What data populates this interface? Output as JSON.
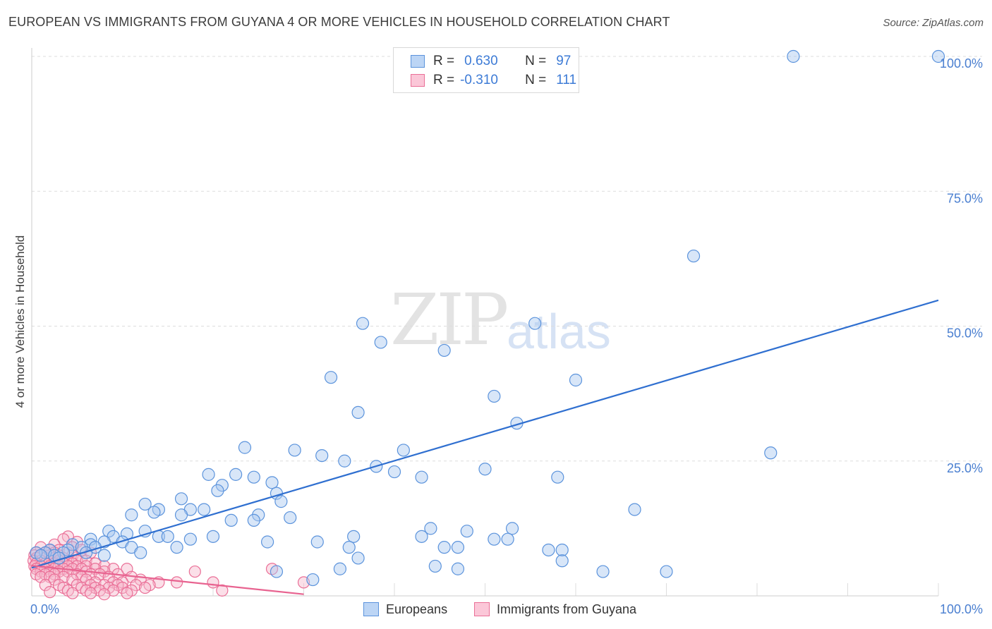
{
  "title": "EUROPEAN VS IMMIGRANTS FROM GUYANA 4 OR MORE VEHICLES IN HOUSEHOLD CORRELATION CHART",
  "source": "Source: ZipAtlas.com",
  "watermark": {
    "zip": "ZIP",
    "atlas": "atlas"
  },
  "legend": {
    "rows": [
      {
        "r_label": "R =",
        "r_value": "0.630",
        "n_label": "N =",
        "n_value": "97"
      },
      {
        "r_label": "R =",
        "r_value": "-0.310",
        "n_label": "N =",
        "n_value": "111"
      }
    ]
  },
  "bottom_legend": {
    "series1": "Europeans",
    "series2": "Immigrants from Guyana"
  },
  "colors": {
    "blue_fill": "#a8c8f0",
    "blue_stroke": "#5b93dc",
    "blue_line": "#2f6fd0",
    "pink_fill": "#f7b8cc",
    "pink_stroke": "#ea6f97",
    "pink_line": "#e86390",
    "tick": "#4a7fd0",
    "grid": "#dddddd"
  },
  "chart_data": {
    "type": "scatter",
    "title": "EUROPEAN VS IMMIGRANTS FROM GUYANA 4 OR MORE VEHICLES IN HOUSEHOLD CORRELATION CHART",
    "xlabel": "",
    "ylabel": "4 or more Vehicles in Household",
    "xlim": [
      0,
      100
    ],
    "ylim": [
      0,
      100
    ],
    "x_tick_labels": [
      {
        "value": 0,
        "label": "0.0%"
      },
      {
        "value": 100,
        "label": "100.0%"
      }
    ],
    "y_tick_labels": [
      {
        "value": 25,
        "label": "25.0%"
      },
      {
        "value": 50,
        "label": "50.0%"
      },
      {
        "value": 75,
        "label": "75.0%"
      },
      {
        "value": 100,
        "label": "100.0%"
      }
    ],
    "grid": "horizontal dashed",
    "legend_position": "top-center",
    "series": [
      {
        "name": "Europeans",
        "color": "#5b93dc",
        "trend": {
          "x": [
            0,
            100
          ],
          "y": [
            5.2,
            54.8
          ]
        },
        "points": [
          [
            84,
            100
          ],
          [
            100,
            100
          ],
          [
            73,
            63
          ],
          [
            36.5,
            50.5
          ],
          [
            55.5,
            50.5
          ],
          [
            38.5,
            47
          ],
          [
            45.5,
            45.5
          ],
          [
            33,
            40.5
          ],
          [
            60,
            40
          ],
          [
            51,
            37
          ],
          [
            36,
            34
          ],
          [
            53.5,
            32
          ],
          [
            23.5,
            27.5
          ],
          [
            29,
            27
          ],
          [
            41,
            27
          ],
          [
            32,
            26
          ],
          [
            34.5,
            25
          ],
          [
            38,
            24
          ],
          [
            50,
            23.5
          ],
          [
            40,
            23
          ],
          [
            22.5,
            22.5
          ],
          [
            19.5,
            22.5
          ],
          [
            24.5,
            22
          ],
          [
            43,
            22
          ],
          [
            58,
            22
          ],
          [
            26.5,
            21
          ],
          [
            21,
            20.5
          ],
          [
            20.5,
            19.5
          ],
          [
            27,
            19
          ],
          [
            81.5,
            26.5
          ],
          [
            16.5,
            18
          ],
          [
            12.5,
            17
          ],
          [
            27.5,
            17.5
          ],
          [
            17.5,
            16
          ],
          [
            14,
            16
          ],
          [
            19,
            16
          ],
          [
            13.5,
            15.5
          ],
          [
            25,
            15
          ],
          [
            16.5,
            15
          ],
          [
            11,
            15
          ],
          [
            28.5,
            14.5
          ],
          [
            22,
            14
          ],
          [
            24.5,
            14
          ],
          [
            66.5,
            16
          ],
          [
            44,
            12.5
          ],
          [
            12.5,
            12
          ],
          [
            8.5,
            12
          ],
          [
            10.5,
            11.5
          ],
          [
            20,
            11
          ],
          [
            9,
            11
          ],
          [
            14,
            11
          ],
          [
            15,
            11
          ],
          [
            6.5,
            10.5
          ],
          [
            8,
            10
          ],
          [
            6.5,
            9.5
          ],
          [
            10,
            10
          ],
          [
            17.5,
            10.5
          ],
          [
            26,
            10
          ],
          [
            48,
            12
          ],
          [
            53,
            12.5
          ],
          [
            35.5,
            11
          ],
          [
            52.5,
            10.5
          ],
          [
            43,
            11
          ],
          [
            51,
            10.5
          ],
          [
            31.5,
            10
          ],
          [
            4.5,
            9.5
          ],
          [
            5.5,
            9
          ],
          [
            7,
            9
          ],
          [
            11,
            9
          ],
          [
            16,
            9
          ],
          [
            4,
            8.5
          ],
          [
            2,
            8.5
          ],
          [
            3.5,
            8
          ],
          [
            1.5,
            8
          ],
          [
            0.5,
            8
          ],
          [
            1,
            7.5
          ],
          [
            2.5,
            7.5
          ],
          [
            3,
            7
          ],
          [
            6,
            8
          ],
          [
            8,
            7.5
          ],
          [
            12,
            8
          ],
          [
            35,
            9
          ],
          [
            45.5,
            9
          ],
          [
            47,
            9
          ],
          [
            57,
            8.5
          ],
          [
            58.5,
            8.5
          ],
          [
            36,
            7
          ],
          [
            58.5,
            6.5
          ],
          [
            44.5,
            5.5
          ],
          [
            34,
            5
          ],
          [
            47,
            5
          ],
          [
            63,
            4.5
          ],
          [
            70,
            4.5
          ],
          [
            27,
            4.5
          ],
          [
            31,
            3
          ]
        ]
      },
      {
        "name": "Immigrants from Guyana",
        "color": "#ea6f97",
        "trend": {
          "x": [
            0,
            30
          ],
          "y": [
            5.6,
            0.3
          ]
        },
        "points": [
          [
            4,
            11
          ],
          [
            3.5,
            10.5
          ],
          [
            5,
            10
          ],
          [
            2.5,
            9.5
          ],
          [
            4.5,
            9
          ],
          [
            1,
            9
          ],
          [
            2,
            8.5
          ],
          [
            3,
            8.5
          ],
          [
            5.5,
            8.5
          ],
          [
            0.5,
            8
          ],
          [
            1.5,
            8
          ],
          [
            2.5,
            8
          ],
          [
            4,
            8
          ],
          [
            6.5,
            8
          ],
          [
            0.3,
            7.5
          ],
          [
            1,
            7.5
          ],
          [
            2,
            7.5
          ],
          [
            3,
            7.5
          ],
          [
            4.5,
            7.5
          ],
          [
            5.5,
            7
          ],
          [
            0.5,
            7
          ],
          [
            1.5,
            7
          ],
          [
            2.5,
            7
          ],
          [
            3.5,
            7
          ],
          [
            0.2,
            6.5
          ],
          [
            1,
            6.5
          ],
          [
            2,
            6.5
          ],
          [
            3,
            6.5
          ],
          [
            4,
            6.5
          ],
          [
            5,
            6.5
          ],
          [
            6,
            6.5
          ],
          [
            0.5,
            6
          ],
          [
            1.5,
            6
          ],
          [
            2.5,
            6
          ],
          [
            3.5,
            6
          ],
          [
            4.5,
            6
          ],
          [
            7,
            6
          ],
          [
            0.3,
            5.5
          ],
          [
            1,
            5.5
          ],
          [
            2,
            5.5
          ],
          [
            3,
            5.5
          ],
          [
            4,
            5.5
          ],
          [
            5,
            5.5
          ],
          [
            6,
            5.5
          ],
          [
            8,
            5.5
          ],
          [
            0.5,
            5
          ],
          [
            1.5,
            5
          ],
          [
            2.5,
            5
          ],
          [
            3.5,
            5
          ],
          [
            4.5,
            5
          ],
          [
            5.5,
            5
          ],
          [
            7,
            5
          ],
          [
            9,
            5
          ],
          [
            10.5,
            5
          ],
          [
            1,
            4.5
          ],
          [
            2,
            4.5
          ],
          [
            3,
            4.5
          ],
          [
            4,
            4.5
          ],
          [
            6,
            4.5
          ],
          [
            8,
            4.5
          ],
          [
            18,
            4.5
          ],
          [
            26.5,
            5
          ],
          [
            0.5,
            4
          ],
          [
            1.5,
            4
          ],
          [
            2.5,
            4
          ],
          [
            5,
            4
          ],
          [
            6.5,
            4
          ],
          [
            7.5,
            4
          ],
          [
            9.5,
            4
          ],
          [
            1,
            3.5
          ],
          [
            2,
            3.5
          ],
          [
            3.5,
            3.5
          ],
          [
            5.5,
            3.5
          ],
          [
            8.5,
            3.5
          ],
          [
            11,
            3.5
          ],
          [
            12,
            3
          ],
          [
            2.5,
            3
          ],
          [
            4.5,
            3
          ],
          [
            6,
            3
          ],
          [
            7,
            2.5
          ],
          [
            9,
            2.5
          ],
          [
            10,
            2.5
          ],
          [
            14,
            2.5
          ],
          [
            16,
            2.5
          ],
          [
            20,
            2.5
          ],
          [
            30,
            2.5
          ],
          [
            1.5,
            2
          ],
          [
            3,
            2
          ],
          [
            5,
            2
          ],
          [
            6.5,
            2
          ],
          [
            8,
            2
          ],
          [
            9.5,
            2
          ],
          [
            11.5,
            2
          ],
          [
            13,
            2
          ],
          [
            3.5,
            1.5
          ],
          [
            5.5,
            1.5
          ],
          [
            7,
            1.5
          ],
          [
            8.5,
            1.5
          ],
          [
            10,
            1.5
          ],
          [
            12.5,
            1.5
          ],
          [
            4,
            1
          ],
          [
            6,
            1
          ],
          [
            7.5,
            1
          ],
          [
            9,
            1
          ],
          [
            11,
            1
          ],
          [
            21,
            1
          ],
          [
            2,
            0.7
          ],
          [
            4.5,
            0.5
          ],
          [
            6.5,
            0.5
          ],
          [
            10.5,
            0.5
          ],
          [
            8,
            0.3
          ]
        ]
      }
    ]
  }
}
